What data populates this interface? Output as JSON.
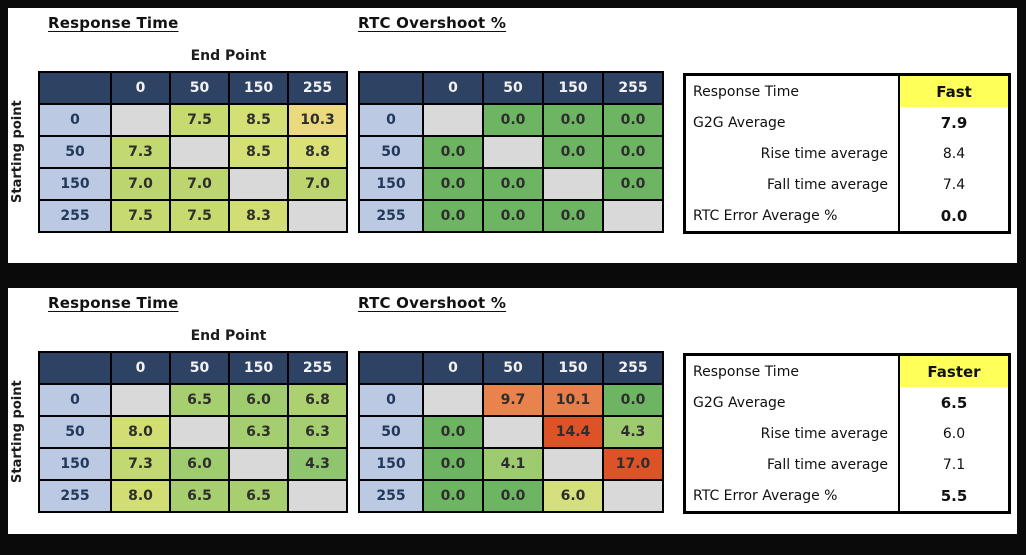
{
  "colors": {
    "frame_bg": "#0a0a0a",
    "panel_bg": "#ffffff",
    "matrix_header_bg": "#2E4263",
    "matrix_header_text": "#F2F2F2",
    "row_header_bg": "#BCC9E2",
    "row_header_text": "#23395C",
    "diagonal_bg": "#D9D9D9",
    "highlight_yellow": "#FFFF59"
  },
  "panels": [
    {
      "rt_title": "Response Time",
      "rtc_title": "RTC Overshoot %",
      "end_point_label": "End Point",
      "starting_point_label": "Starting point",
      "rt_matrix": {
        "col_headers": [
          "0",
          "50",
          "150",
          "255"
        ],
        "row_headers": [
          "0",
          "50",
          "150",
          "255"
        ],
        "values": [
          [
            "",
            "7.5",
            "8.5",
            "10.3"
          ],
          [
            "7.3",
            "",
            "8.5",
            "8.8"
          ],
          [
            "7.0",
            "7.0",
            "",
            "7.0"
          ],
          [
            "7.5",
            "7.5",
            "8.3",
            ""
          ]
        ],
        "colors": [
          [
            "",
            "#C7DA70",
            "#D4DF75",
            "#EBD980"
          ],
          [
            "#C2D870",
            "",
            "#D4DF75",
            "#D8E077"
          ],
          [
            "#BCD56F",
            "#BCD56F",
            "",
            "#BCD56F"
          ],
          [
            "#C7DA70",
            "#C7DA70",
            "#D2DE74",
            ""
          ]
        ]
      },
      "rtc_matrix": {
        "col_headers": [
          "0",
          "50",
          "150",
          "255"
        ],
        "row_headers": [
          "0",
          "50",
          "150",
          "255"
        ],
        "values": [
          [
            "",
            "0.0",
            "0.0",
            "0.0"
          ],
          [
            "0.0",
            "",
            "0.0",
            "0.0"
          ],
          [
            "0.0",
            "0.0",
            "",
            "0.0"
          ],
          [
            "0.0",
            "0.0",
            "0.0",
            ""
          ]
        ],
        "colors": [
          [
            "",
            "#6DB563",
            "#6DB563",
            "#6DB563"
          ],
          [
            "#6DB563",
            "",
            "#6DB563",
            "#6DB563"
          ],
          [
            "#6DB563",
            "#6DB563",
            "",
            "#6DB563"
          ],
          [
            "#6DB563",
            "#6DB563",
            "#6DB563",
            ""
          ]
        ]
      },
      "summary": {
        "header_label": "Response Time",
        "header_value": "Fast",
        "rows": [
          {
            "label": "G2G Average",
            "value": "7.9",
            "indent": false,
            "value_bold": true
          },
          {
            "label": "Rise time average",
            "value": "8.4",
            "indent": true,
            "value_bold": false
          },
          {
            "label": "Fall time average",
            "value": "7.4",
            "indent": true,
            "value_bold": false
          },
          {
            "label": "RTC Error Average %",
            "value": "0.0",
            "indent": false,
            "value_bold": true
          }
        ]
      }
    },
    {
      "rt_title": "Response Time",
      "rtc_title": "RTC Overshoot %",
      "end_point_label": "End Point",
      "starting_point_label": "Starting point",
      "rt_matrix": {
        "col_headers": [
          "0",
          "50",
          "150",
          "255"
        ],
        "row_headers": [
          "0",
          "50",
          "150",
          "255"
        ],
        "values": [
          [
            "",
            "6.5",
            "6.0",
            "6.8"
          ],
          [
            "8.0",
            "",
            "6.3",
            "6.3"
          ],
          [
            "7.3",
            "6.0",
            "",
            "4.3"
          ],
          [
            "8.0",
            "6.5",
            "6.5",
            ""
          ]
        ],
        "colors": [
          [
            "",
            "#A7CF70",
            "#9FCC6F",
            "#ADD171"
          ],
          [
            "#D2DE74",
            "",
            "#A4CE70",
            "#A4CE70"
          ],
          [
            "#C2D870",
            "#9FCC6F",
            "",
            "#90C56F"
          ],
          [
            "#D2DE74",
            "#A7CF70",
            "#A7CF70",
            ""
          ]
        ]
      },
      "rtc_matrix": {
        "col_headers": [
          "0",
          "50",
          "150",
          "255"
        ],
        "row_headers": [
          "0",
          "50",
          "150",
          "255"
        ],
        "values": [
          [
            "",
            "9.7",
            "10.1",
            "0.0"
          ],
          [
            "0.0",
            "",
            "14.4",
            "4.3"
          ],
          [
            "0.0",
            "4.1",
            "",
            "17.0"
          ],
          [
            "0.0",
            "0.0",
            "6.0",
            ""
          ]
        ],
        "colors": [
          [
            "",
            "#E8834E",
            "#E67F4B",
            "#6DB563"
          ],
          [
            "#6DB563",
            "",
            "#DC5328",
            "#9ECB70"
          ],
          [
            "#6DB563",
            "#9ECB70",
            "",
            "#DC5328"
          ],
          [
            "#6DB563",
            "#6DB563",
            "#D6DF7E",
            ""
          ]
        ]
      },
      "summary": {
        "header_label": "Response Time",
        "header_value": "Faster",
        "rows": [
          {
            "label": "G2G Average",
            "value": "6.5",
            "indent": false,
            "value_bold": true
          },
          {
            "label": "Rise time average",
            "value": "6.0",
            "indent": true,
            "value_bold": false
          },
          {
            "label": "Fall time average",
            "value": "7.1",
            "indent": true,
            "value_bold": false
          },
          {
            "label": "RTC Error Average %",
            "value": "5.5",
            "indent": false,
            "value_bold": true
          }
        ]
      }
    }
  ]
}
